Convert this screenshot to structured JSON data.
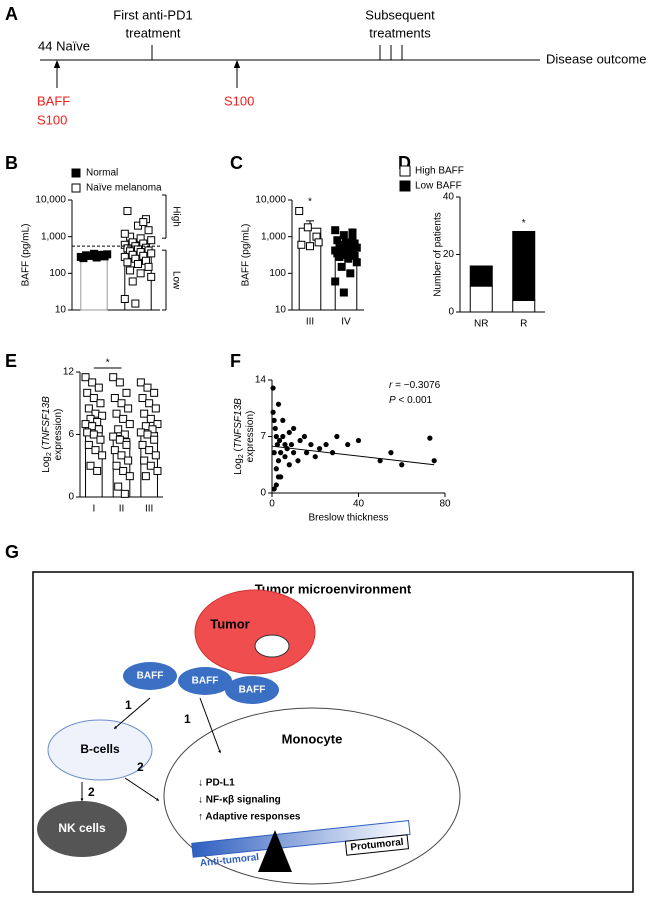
{
  "panels": [
    "A",
    "B",
    "C",
    "D",
    "E",
    "F",
    "G"
  ],
  "timeline": {
    "start": "44 Naïve",
    "first": [
      "First anti-PD1",
      "treatment"
    ],
    "subsequent": [
      "Subsequent",
      "treatments"
    ],
    "outcome": "Disease outcome",
    "sample_1": [
      "BAFF",
      "S100"
    ],
    "sample_2": "S100"
  },
  "chart_data": [
    {
      "type": "dot",
      "ylabel": "BAFF (pg/mL)",
      "log": true,
      "ylim": [
        10,
        10000
      ],
      "yticks": [
        10,
        100,
        {
          "value": 1000,
          "label": "1,000"
        },
        {
          "value": 10000,
          "label": "10,000"
        }
      ],
      "categories": [
        null,
        null
      ],
      "groups": [
        {
          "name": "Normal",
          "marker": "filled",
          "mean": 300,
          "points": [
            280,
            300,
            320,
            260,
            340,
            290,
            310,
            270,
            330,
            300
          ]
        },
        {
          "name": "Naïve melanoma",
          "marker": "open",
          "mean": 480,
          "points": [
            20,
            15,
            3000,
            5000,
            2000,
            1500,
            1000,
            900,
            800,
            700,
            650,
            600,
            550,
            500,
            480,
            450,
            420,
            400,
            380,
            350,
            320,
            300,
            280,
            250,
            220,
            200,
            180,
            150,
            120,
            100,
            80,
            60,
            2500,
            1200
          ]
        }
      ],
      "threshold": 550,
      "annotations": [
        "High",
        "Low"
      ]
    },
    {
      "type": "dot",
      "ylabel": "BAFF (pg/mL)",
      "log": true,
      "ylim": [
        10,
        10000
      ],
      "yticks": [
        10,
        100,
        {
          "value": 1000,
          "label": "1,000"
        },
        {
          "value": 10000,
          "label": "10,000"
        }
      ],
      "categories": [
        "III",
        "IV"
      ],
      "category_notes": [
        "*",
        null
      ],
      "groups": [
        {
          "marker": "open",
          "mean": 1700,
          "error": 1000,
          "points": [
            5000,
            1800,
            1000,
            600,
            550,
            700
          ]
        },
        {
          "marker": "filled",
          "mean": 450,
          "error": 100,
          "points": [
            1500,
            1100,
            900,
            800,
            700,
            650,
            600,
            550,
            500,
            480,
            450,
            420,
            400,
            380,
            350,
            320,
            300,
            280,
            250,
            200,
            150,
            100,
            60,
            30,
            1300
          ]
        }
      ]
    },
    {
      "type": "stacked_bar",
      "ylabel": "Number of patients",
      "ylim": [
        0,
        40
      ],
      "yticks": [
        0,
        20,
        40
      ],
      "categories": [
        "NR",
        "R"
      ],
      "category_notes": [
        null,
        "*"
      ],
      "series": [
        {
          "name": "High BAFF",
          "color": "#ffffff",
          "values": [
            9,
            4
          ]
        },
        {
          "name": "Low BAFF",
          "color": "#000000",
          "values": [
            7,
            24
          ]
        }
      ]
    },
    {
      "type": "dot",
      "ylabel": [
        [
          {
            "text": "Log"
          },
          {
            "text": "2",
            "style": "sub"
          },
          {
            "text": " ("
          },
          {
            "text": "TNFSF13B",
            "style": "italic"
          }
        ],
        [
          {
            "text": "expression)"
          }
        ]
      ],
      "ylim": [
        0,
        12
      ],
      "yticks": [
        0,
        6,
        12
      ],
      "categories": [
        "I",
        "II",
        "III"
      ],
      "bracket_note": "*",
      "groups": [
        {
          "marker": "open",
          "mean": 6.8,
          "error": 0.3,
          "points": [
            11.5,
            11,
            10.5,
            10,
            9.5,
            9,
            8.5,
            8,
            7.8,
            7.5,
            7.2,
            7,
            6.8,
            6.5,
            6.2,
            6,
            5.5,
            5,
            4.5,
            4,
            3,
            2.5
          ]
        },
        {
          "marker": "open",
          "mean": 5.6,
          "error": 0.3,
          "points": [
            11.5,
            11,
            10,
            9.5,
            9,
            8.5,
            8,
            7.5,
            7,
            6.5,
            6,
            5.8,
            5.5,
            5,
            4.5,
            4,
            3.5,
            3,
            2.5,
            2,
            1,
            0.3
          ]
        },
        {
          "marker": "open",
          "mean": 6.2,
          "error": 0.3,
          "points": [
            11,
            10.5,
            10,
            9.5,
            9,
            8.5,
            8,
            7.5,
            7,
            6.8,
            6.5,
            6.2,
            6,
            5.5,
            5,
            4.5,
            4,
            3.5,
            3,
            2.5,
            2
          ]
        }
      ]
    },
    {
      "type": "scatter",
      "ylabel": [
        [
          {
            "text": "Log"
          },
          {
            "text": "2",
            "style": "sub"
          },
          {
            "text": " ("
          },
          {
            "text": "TNFSF13B",
            "style": "italic"
          }
        ],
        [
          {
            "text": "expression)"
          }
        ]
      ],
      "xlabel": "Breslow thickness",
      "xlim": [
        0,
        80
      ],
      "xticks": [
        0,
        40,
        80
      ],
      "ylim": [
        0,
        14
      ],
      "yticks": [
        0,
        7,
        14
      ],
      "x": [
        0.5,
        1,
        1,
        1.5,
        2,
        2,
        2.5,
        3,
        3,
        3.5,
        4,
        4,
        5,
        5,
        6,
        6,
        7,
        8,
        8,
        9,
        10,
        10,
        12,
        13,
        15,
        16,
        18,
        20,
        22,
        25,
        28,
        30,
        35,
        40,
        50,
        55,
        60,
        73,
        75,
        1,
        2,
        3,
        0.5
      ],
      "values": [
        10,
        9,
        5,
        8,
        7,
        3,
        6,
        4,
        11,
        6.5,
        5,
        2,
        7,
        9,
        4.5,
        6,
        5.5,
        7.5,
        3.5,
        6,
        5,
        8,
        4,
        6.5,
        7,
        5,
        6,
        4.5,
        5.5,
        6,
        5,
        7,
        6,
        6.5,
        4,
        5,
        3.5,
        6.8,
        4,
        0.5,
        1,
        2,
        13
      ],
      "fit": {
        "x": [
          0,
          75
        ],
        "y": [
          5.8,
          3.5
        ]
      },
      "stats": [
        {
          "symbol": "r",
          "text": " = −0.3076"
        },
        {
          "symbol": "P",
          "text": " < 0.001"
        }
      ]
    }
  ],
  "diagram": {
    "title": "Tumor microenvironment",
    "tumor": "Tumor",
    "baff": [
      "BAFF",
      "BAFF",
      "BAFF"
    ],
    "b_cells": "B-cells",
    "monocyte": "Monocyte",
    "nk_cells": "NK cells",
    "arrows": [
      "1",
      "1",
      "2",
      "2"
    ],
    "effects": [
      "↓ PD-L1",
      "↓ NF-κβ signaling",
      "↑ Adaptive responses"
    ],
    "balance": [
      "Anti-tumoral",
      "Protumoral"
    ]
  }
}
